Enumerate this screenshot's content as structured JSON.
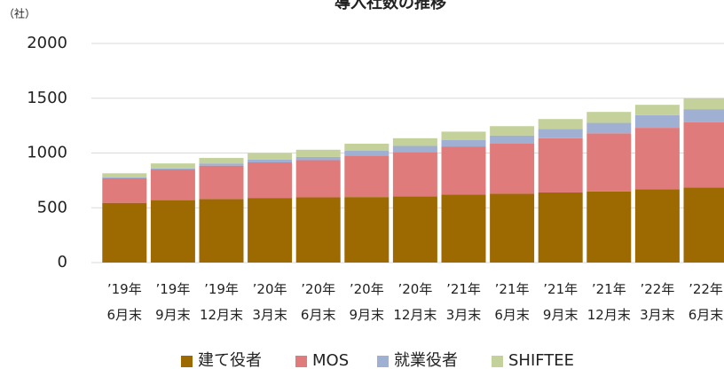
{
  "chart_data": {
    "type": "stacked_bar",
    "title": "導入社数の推移",
    "y_unit": "（社）",
    "categories": [
      "’19年\n6月末",
      "’19年\n9月末",
      "’19年\n12月末",
      "’20年\n3月末",
      "’20年\n6月末",
      "’20年\n9月末",
      "’20年\n12月末",
      "’21年\n3月末",
      "’21年\n6月末",
      "’21年\n9月末",
      "’21年\n12月末",
      "’22年\n3月末",
      "’22年\n6月末"
    ],
    "series": [
      {
        "name": "建て役者",
        "color": "#9c6a00",
        "values": [
          545,
          570,
          580,
          590,
          595,
          598,
          605,
          620,
          628,
          640,
          650,
          670,
          685
        ]
      },
      {
        "name": "MOS",
        "color": "#e07b7b",
        "values": [
          225,
          280,
          305,
          325,
          340,
          377,
          405,
          440,
          457,
          495,
          530,
          560,
          595
        ]
      },
      {
        "name": "就業役者",
        "color": "#9fb0d2",
        "values": [
          10,
          10,
          20,
          25,
          30,
          45,
          55,
          60,
          75,
          85,
          95,
          115,
          120
        ]
      },
      {
        "name": "SHIFTEE",
        "color": "#c4d19a",
        "values": [
          35,
          45,
          50,
          60,
          65,
          65,
          70,
          75,
          85,
          90,
          100,
          95,
          100
        ]
      }
    ],
    "ylim": [
      0,
      2000
    ],
    "yticks": [
      0,
      500,
      1000,
      1500,
      2000
    ],
    "grid": true,
    "legend": "bottom"
  }
}
